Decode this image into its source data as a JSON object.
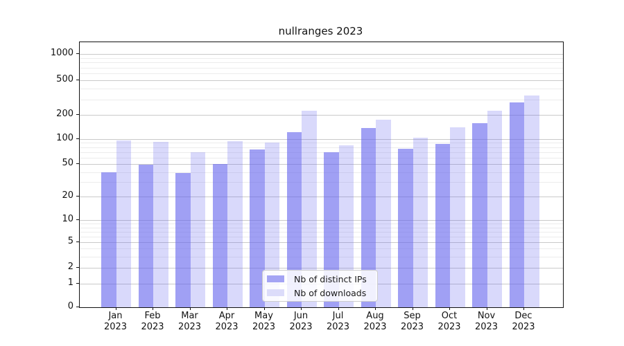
{
  "title": "nullranges 2023",
  "legend": {
    "items": [
      {
        "label": "Nb of distinct IPs",
        "color": "#a4a4f4"
      },
      {
        "label": "Nb of downloads",
        "color": "#dcdcfa"
      }
    ]
  },
  "y_axis": {
    "tick_labels": [
      "0",
      "1",
      "2",
      "5",
      "10",
      "20",
      "50",
      "100",
      "200",
      "500",
      "1000"
    ]
  },
  "x_axis": {
    "year": "2023",
    "months": [
      "Jan",
      "Feb",
      "Mar",
      "Apr",
      "May",
      "Jun",
      "Jul",
      "Aug",
      "Sep",
      "Oct",
      "Nov",
      "Dec"
    ]
  },
  "chart_data": {
    "type": "bar",
    "title": "nullranges 2023",
    "categories": [
      "Jan 2023",
      "Feb 2023",
      "Mar 2023",
      "Apr 2023",
      "May 2023",
      "Jun 2023",
      "Jul 2023",
      "Aug 2023",
      "Sep 2023",
      "Oct 2023",
      "Nov 2023",
      "Dec 2023"
    ],
    "series": [
      {
        "name": "Nb of distinct IPs",
        "color": "rgba(102,102,238,0.62)",
        "values": [
          40,
          49,
          39,
          50,
          75,
          122,
          69,
          136,
          76,
          87,
          159,
          280
        ]
      },
      {
        "name": "Nb of downloads",
        "color": "rgba(102,102,238,0.25)",
        "values": [
          96,
          92,
          70,
          94,
          91,
          225,
          84,
          174,
          104,
          139,
          222,
          335
        ]
      }
    ],
    "xlabel": "",
    "ylabel": "",
    "yscale": "symlog",
    "yticks": [
      0,
      1,
      2,
      5,
      10,
      20,
      50,
      100,
      200,
      500,
      1000
    ],
    "minor_yticks": [
      3,
      4,
      6,
      7,
      8,
      9,
      30,
      40,
      60,
      70,
      80,
      90,
      300,
      400,
      600,
      700,
      800,
      900
    ],
    "ylim": [
      0,
      1400
    ],
    "grid": true,
    "legend_position": "lower center"
  }
}
